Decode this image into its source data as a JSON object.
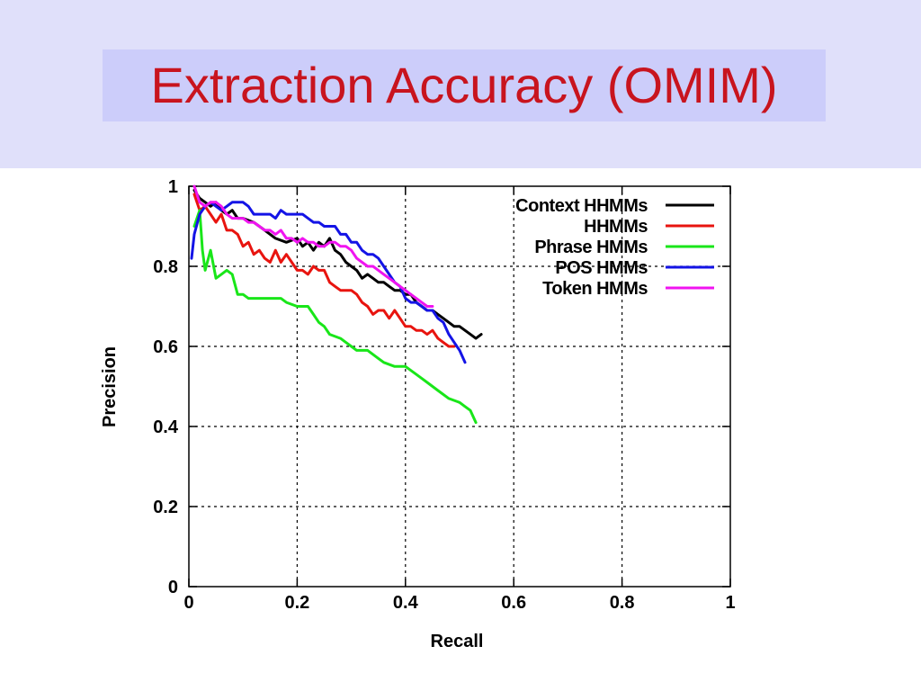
{
  "slide": {
    "title": "Extraction Accuracy (OMIM)"
  },
  "colors": {
    "header_band": "#e0e0fa",
    "title_box": "#cccdfa",
    "title_text": "#c8141e"
  },
  "chart_data": {
    "type": "line",
    "xlabel": "Recall",
    "ylabel": "Precision",
    "xlim": [
      0,
      1
    ],
    "ylim": [
      0,
      1
    ],
    "x_ticks": [
      "0",
      "0.2",
      "0.4",
      "0.6",
      "0.8",
      "1"
    ],
    "y_ticks": [
      "0",
      "0.2",
      "0.4",
      "0.6",
      "0.8",
      "1"
    ],
    "grid": true,
    "legend_position": "top-right",
    "series": [
      {
        "name": "Context HHMMs",
        "color": "#000000",
        "points": [
          [
            0.01,
            0.99
          ],
          [
            0.02,
            0.97
          ],
          [
            0.03,
            0.96
          ],
          [
            0.04,
            0.95
          ],
          [
            0.05,
            0.96
          ],
          [
            0.06,
            0.94
          ],
          [
            0.07,
            0.93
          ],
          [
            0.08,
            0.94
          ],
          [
            0.09,
            0.92
          ],
          [
            0.1,
            0.92
          ],
          [
            0.12,
            0.91
          ],
          [
            0.14,
            0.89
          ],
          [
            0.16,
            0.87
          ],
          [
            0.18,
            0.86
          ],
          [
            0.2,
            0.87
          ],
          [
            0.21,
            0.85
          ],
          [
            0.22,
            0.86
          ],
          [
            0.23,
            0.84
          ],
          [
            0.24,
            0.86
          ],
          [
            0.25,
            0.85
          ],
          [
            0.26,
            0.87
          ],
          [
            0.27,
            0.84
          ],
          [
            0.28,
            0.83
          ],
          [
            0.29,
            0.81
          ],
          [
            0.3,
            0.8
          ],
          [
            0.31,
            0.79
          ],
          [
            0.32,
            0.77
          ],
          [
            0.33,
            0.78
          ],
          [
            0.34,
            0.77
          ],
          [
            0.35,
            0.76
          ],
          [
            0.36,
            0.76
          ],
          [
            0.37,
            0.75
          ],
          [
            0.38,
            0.74
          ],
          [
            0.39,
            0.74
          ],
          [
            0.4,
            0.73
          ],
          [
            0.41,
            0.73
          ],
          [
            0.42,
            0.71
          ],
          [
            0.43,
            0.7
          ],
          [
            0.44,
            0.69
          ],
          [
            0.45,
            0.69
          ],
          [
            0.46,
            0.68
          ],
          [
            0.47,
            0.67
          ],
          [
            0.48,
            0.66
          ],
          [
            0.49,
            0.65
          ],
          [
            0.5,
            0.65
          ],
          [
            0.51,
            0.64
          ],
          [
            0.52,
            0.63
          ],
          [
            0.53,
            0.62
          ],
          [
            0.54,
            0.63
          ]
        ]
      },
      {
        "name": "HHMMs",
        "color": "#e8140f",
        "points": [
          [
            0.01,
            0.98
          ],
          [
            0.02,
            0.94
          ],
          [
            0.03,
            0.95
          ],
          [
            0.04,
            0.93
          ],
          [
            0.05,
            0.91
          ],
          [
            0.06,
            0.93
          ],
          [
            0.07,
            0.89
          ],
          [
            0.08,
            0.89
          ],
          [
            0.09,
            0.88
          ],
          [
            0.1,
            0.85
          ],
          [
            0.11,
            0.86
          ],
          [
            0.12,
            0.83
          ],
          [
            0.13,
            0.84
          ],
          [
            0.14,
            0.82
          ],
          [
            0.15,
            0.81
          ],
          [
            0.16,
            0.84
          ],
          [
            0.17,
            0.81
          ],
          [
            0.18,
            0.83
          ],
          [
            0.19,
            0.81
          ],
          [
            0.2,
            0.79
          ],
          [
            0.21,
            0.79
          ],
          [
            0.22,
            0.78
          ],
          [
            0.23,
            0.8
          ],
          [
            0.24,
            0.79
          ],
          [
            0.25,
            0.79
          ],
          [
            0.26,
            0.76
          ],
          [
            0.27,
            0.75
          ],
          [
            0.28,
            0.74
          ],
          [
            0.29,
            0.74
          ],
          [
            0.3,
            0.74
          ],
          [
            0.31,
            0.73
          ],
          [
            0.32,
            0.71
          ],
          [
            0.33,
            0.7
          ],
          [
            0.34,
            0.68
          ],
          [
            0.35,
            0.69
          ],
          [
            0.36,
            0.69
          ],
          [
            0.37,
            0.67
          ],
          [
            0.38,
            0.69
          ],
          [
            0.39,
            0.67
          ],
          [
            0.4,
            0.65
          ],
          [
            0.41,
            0.65
          ],
          [
            0.42,
            0.64
          ],
          [
            0.43,
            0.64
          ],
          [
            0.44,
            0.63
          ],
          [
            0.45,
            0.64
          ],
          [
            0.46,
            0.62
          ],
          [
            0.47,
            0.61
          ],
          [
            0.48,
            0.6
          ],
          [
            0.49,
            0.6
          ]
        ]
      },
      {
        "name": "Phrase HMMs",
        "color": "#19e619",
        "points": [
          [
            0.01,
            0.9
          ],
          [
            0.02,
            0.94
          ],
          [
            0.025,
            0.84
          ],
          [
            0.03,
            0.79
          ],
          [
            0.04,
            0.84
          ],
          [
            0.05,
            0.77
          ],
          [
            0.06,
            0.78
          ],
          [
            0.07,
            0.79
          ],
          [
            0.08,
            0.78
          ],
          [
            0.09,
            0.73
          ],
          [
            0.1,
            0.73
          ],
          [
            0.11,
            0.72
          ],
          [
            0.13,
            0.72
          ],
          [
            0.15,
            0.72
          ],
          [
            0.17,
            0.72
          ],
          [
            0.18,
            0.71
          ],
          [
            0.2,
            0.7
          ],
          [
            0.22,
            0.7
          ],
          [
            0.23,
            0.68
          ],
          [
            0.24,
            0.66
          ],
          [
            0.25,
            0.65
          ],
          [
            0.26,
            0.63
          ],
          [
            0.28,
            0.62
          ],
          [
            0.29,
            0.61
          ],
          [
            0.3,
            0.6
          ],
          [
            0.31,
            0.59
          ],
          [
            0.33,
            0.59
          ],
          [
            0.34,
            0.58
          ],
          [
            0.35,
            0.57
          ],
          [
            0.36,
            0.56
          ],
          [
            0.38,
            0.55
          ],
          [
            0.4,
            0.55
          ],
          [
            0.41,
            0.54
          ],
          [
            0.42,
            0.53
          ],
          [
            0.43,
            0.52
          ],
          [
            0.44,
            0.51
          ],
          [
            0.46,
            0.49
          ],
          [
            0.48,
            0.47
          ],
          [
            0.5,
            0.46
          ],
          [
            0.51,
            0.45
          ],
          [
            0.52,
            0.44
          ],
          [
            0.53,
            0.41
          ]
        ]
      },
      {
        "name": "POS HMMs",
        "color": "#1414e6",
        "points": [
          [
            0.005,
            0.82
          ],
          [
            0.01,
            0.88
          ],
          [
            0.02,
            0.93
          ],
          [
            0.03,
            0.95
          ],
          [
            0.04,
            0.96
          ],
          [
            0.05,
            0.95
          ],
          [
            0.06,
            0.94
          ],
          [
            0.07,
            0.95
          ],
          [
            0.08,
            0.96
          ],
          [
            0.09,
            0.96
          ],
          [
            0.1,
            0.96
          ],
          [
            0.11,
            0.95
          ],
          [
            0.12,
            0.93
          ],
          [
            0.13,
            0.93
          ],
          [
            0.14,
            0.93
          ],
          [
            0.15,
            0.93
          ],
          [
            0.16,
            0.92
          ],
          [
            0.17,
            0.94
          ],
          [
            0.18,
            0.93
          ],
          [
            0.19,
            0.93
          ],
          [
            0.2,
            0.93
          ],
          [
            0.21,
            0.93
          ],
          [
            0.22,
            0.92
          ],
          [
            0.23,
            0.91
          ],
          [
            0.24,
            0.91
          ],
          [
            0.25,
            0.9
          ],
          [
            0.26,
            0.9
          ],
          [
            0.27,
            0.9
          ],
          [
            0.28,
            0.88
          ],
          [
            0.29,
            0.88
          ],
          [
            0.3,
            0.86
          ],
          [
            0.31,
            0.86
          ],
          [
            0.32,
            0.84
          ],
          [
            0.33,
            0.83
          ],
          [
            0.34,
            0.83
          ],
          [
            0.35,
            0.82
          ],
          [
            0.36,
            0.8
          ],
          [
            0.37,
            0.78
          ],
          [
            0.38,
            0.76
          ],
          [
            0.39,
            0.75
          ],
          [
            0.4,
            0.72
          ],
          [
            0.41,
            0.71
          ],
          [
            0.42,
            0.71
          ],
          [
            0.43,
            0.7
          ],
          [
            0.44,
            0.69
          ],
          [
            0.45,
            0.69
          ],
          [
            0.46,
            0.67
          ],
          [
            0.47,
            0.66
          ],
          [
            0.48,
            0.63
          ],
          [
            0.49,
            0.61
          ],
          [
            0.5,
            0.59
          ],
          [
            0.51,
            0.56
          ]
        ]
      },
      {
        "name": "Token HMMs",
        "color": "#f014f0",
        "points": [
          [
            0.01,
            1.0
          ],
          [
            0.02,
            0.96
          ],
          [
            0.03,
            0.95
          ],
          [
            0.04,
            0.96
          ],
          [
            0.05,
            0.96
          ],
          [
            0.06,
            0.95
          ],
          [
            0.07,
            0.93
          ],
          [
            0.08,
            0.92
          ],
          [
            0.09,
            0.92
          ],
          [
            0.1,
            0.92
          ],
          [
            0.11,
            0.91
          ],
          [
            0.12,
            0.91
          ],
          [
            0.13,
            0.9
          ],
          [
            0.14,
            0.89
          ],
          [
            0.15,
            0.89
          ],
          [
            0.16,
            0.88
          ],
          [
            0.17,
            0.89
          ],
          [
            0.18,
            0.87
          ],
          [
            0.19,
            0.87
          ],
          [
            0.2,
            0.86
          ],
          [
            0.21,
            0.87
          ],
          [
            0.22,
            0.86
          ],
          [
            0.23,
            0.86
          ],
          [
            0.24,
            0.85
          ],
          [
            0.25,
            0.85
          ],
          [
            0.26,
            0.86
          ],
          [
            0.27,
            0.86
          ],
          [
            0.28,
            0.85
          ],
          [
            0.29,
            0.85
          ],
          [
            0.3,
            0.84
          ],
          [
            0.31,
            0.82
          ],
          [
            0.32,
            0.81
          ],
          [
            0.33,
            0.8
          ],
          [
            0.34,
            0.8
          ],
          [
            0.35,
            0.79
          ],
          [
            0.36,
            0.78
          ],
          [
            0.37,
            0.77
          ],
          [
            0.38,
            0.76
          ],
          [
            0.39,
            0.75
          ],
          [
            0.4,
            0.74
          ],
          [
            0.41,
            0.73
          ],
          [
            0.42,
            0.72
          ],
          [
            0.43,
            0.71
          ],
          [
            0.44,
            0.7
          ],
          [
            0.45,
            0.7
          ]
        ]
      }
    ]
  }
}
